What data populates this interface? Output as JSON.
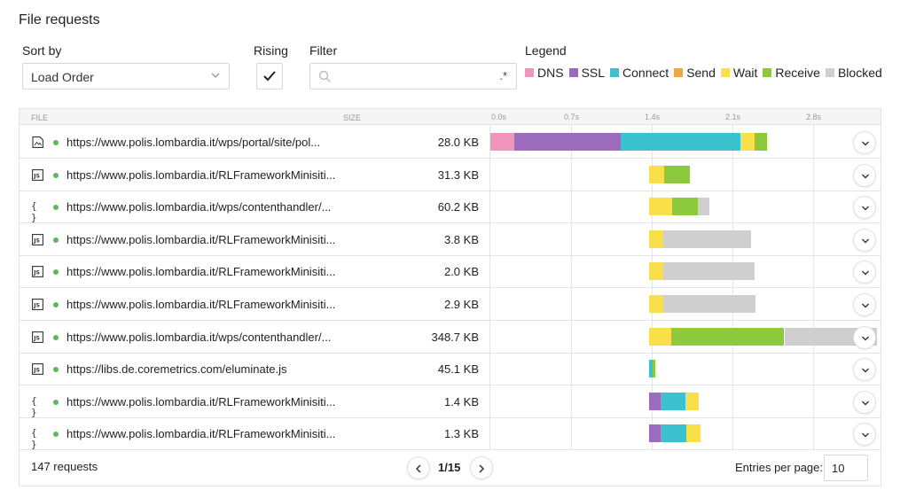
{
  "title": "File requests",
  "controls": {
    "sort_label": "Sort by",
    "sort_value": "Load Order",
    "rising_label": "Rising",
    "rising_checked": true,
    "filter_label": "Filter",
    "filter_value": "",
    "filter_regex": ".*"
  },
  "legend": {
    "label": "Legend",
    "items": [
      {
        "name": "DNS",
        "color": "#f195bd"
      },
      {
        "name": "SSL",
        "color": "#9b6cbd"
      },
      {
        "name": "Connect",
        "color": "#3bc2cf"
      },
      {
        "name": "Send",
        "color": "#f0a744"
      },
      {
        "name": "Wait",
        "color": "#f9e04b"
      },
      {
        "name": "Receive",
        "color": "#8cc93d"
      },
      {
        "name": "Blocked",
        "color": "#cfcfcf"
      }
    ]
  },
  "table": {
    "headers": {
      "file": "FILE",
      "size": "SIZE"
    },
    "ticks": [
      "0.0s",
      "0.7s",
      "1.4s",
      "2.1s",
      "2.8s"
    ],
    "rows": [
      {
        "icon": "image-file-icon",
        "url": "https://www.polis.lombardia.it/wps/portal/site/pol...",
        "size": "28.0 KB",
        "timings": [
          {
            "phase": "DNS",
            "start": 0.0,
            "end": 0.21
          },
          {
            "phase": "SSL",
            "start": 0.21,
            "end": 1.13
          },
          {
            "phase": "Connect",
            "start": 1.13,
            "end": 2.17
          },
          {
            "phase": "Wait",
            "start": 2.17,
            "end": 2.29
          },
          {
            "phase": "Receive",
            "start": 2.29,
            "end": 2.4
          }
        ]
      },
      {
        "icon": "js-file-icon",
        "url": "https://www.polis.lombardia.it/RLFrameworkMinisiti...",
        "size": "31.3 KB",
        "timings": [
          {
            "phase": "Wait",
            "start": 1.38,
            "end": 1.51
          },
          {
            "phase": "Receive",
            "start": 1.51,
            "end": 1.73
          }
        ]
      },
      {
        "icon": "json-file-icon",
        "url": "https://www.polis.lombardia.it/wps/contenthandler/...",
        "size": "60.2 KB",
        "timings": [
          {
            "phase": "Wait",
            "start": 1.38,
            "end": 1.58
          },
          {
            "phase": "Receive",
            "start": 1.58,
            "end": 1.8
          },
          {
            "phase": "Blocked",
            "start": 1.8,
            "end": 1.9
          }
        ]
      },
      {
        "icon": "js-file-icon",
        "url": "https://www.polis.lombardia.it/RLFrameworkMinisiti...",
        "size": "3.8 KB",
        "timings": [
          {
            "phase": "Wait",
            "start": 1.38,
            "end": 1.5
          },
          {
            "phase": "Blocked",
            "start": 1.5,
            "end": 2.26
          }
        ]
      },
      {
        "icon": "js-file-icon",
        "url": "https://www.polis.lombardia.it/RLFrameworkMinisiti...",
        "size": "2.0 KB",
        "timings": [
          {
            "phase": "Wait",
            "start": 1.38,
            "end": 1.5
          },
          {
            "phase": "Blocked",
            "start": 1.5,
            "end": 2.29
          }
        ]
      },
      {
        "icon": "js-file-icon",
        "url": "https://www.polis.lombardia.it/RLFrameworkMinisiti...",
        "size": "2.9 KB",
        "timings": [
          {
            "phase": "Wait",
            "start": 1.38,
            "end": 1.5
          },
          {
            "phase": "Blocked",
            "start": 1.5,
            "end": 2.3
          }
        ]
      },
      {
        "icon": "js-file-icon",
        "url": "https://www.polis.lombardia.it/wps/contenthandler/...",
        "size": "348.7 KB",
        "timings": [
          {
            "phase": "Wait",
            "start": 1.38,
            "end": 1.57
          },
          {
            "phase": "Receive",
            "start": 1.57,
            "end": 2.55
          },
          {
            "phase": "Blocked",
            "start": 2.55,
            "end": 3.35
          }
        ]
      },
      {
        "icon": "js-file-icon",
        "url": "https://libs.de.coremetrics.com/eluminate.js",
        "size": "45.1 KB",
        "timings": [
          {
            "phase": "Connect",
            "start": 1.38,
            "end": 1.41
          },
          {
            "phase": "Receive",
            "start": 1.41,
            "end": 1.43
          }
        ]
      },
      {
        "icon": "json-file-icon",
        "url": "https://www.polis.lombardia.it/RLFrameworkMinisiti...",
        "size": "1.4 KB",
        "timings": [
          {
            "phase": "SSL",
            "start": 1.38,
            "end": 1.48
          },
          {
            "phase": "Connect",
            "start": 1.48,
            "end": 1.69
          },
          {
            "phase": "Wait",
            "start": 1.69,
            "end": 1.81
          }
        ]
      },
      {
        "icon": "json-file-icon",
        "url": "https://www.polis.lombardia.it/RLFrameworkMinisiti...",
        "size": "1.3 KB",
        "timings": [
          {
            "phase": "SSL",
            "start": 1.38,
            "end": 1.48
          },
          {
            "phase": "Connect",
            "start": 1.48,
            "end": 1.7
          },
          {
            "phase": "Wait",
            "start": 1.7,
            "end": 1.82
          }
        ]
      }
    ]
  },
  "footer": {
    "requests": "147 requests",
    "page": "1/15",
    "entries_label": "Entries per page:",
    "entries_value": "10"
  }
}
